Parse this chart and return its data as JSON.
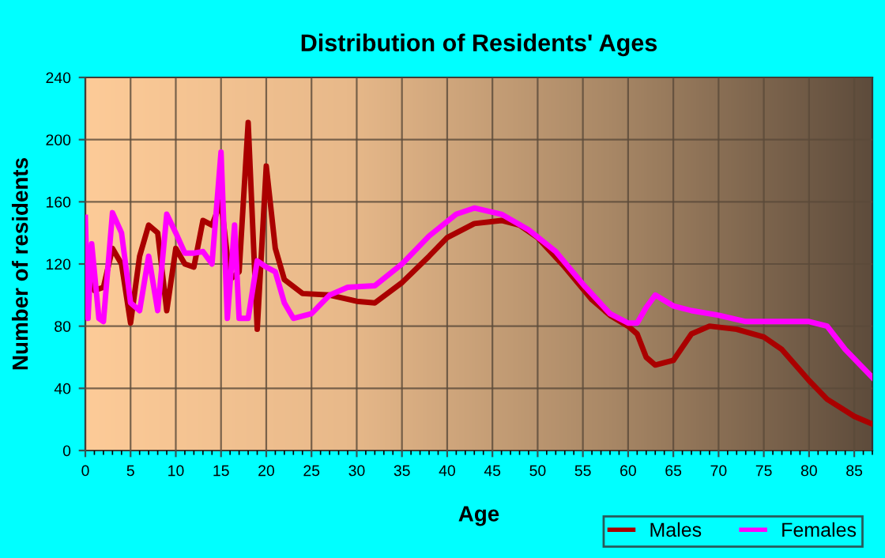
{
  "chart_data": {
    "type": "line",
    "title": "Distribution of Residents' Ages",
    "xlabel": "Age",
    "ylabel": "Number of residents",
    "xlim": [
      0,
      87
    ],
    "xticks": [
      0,
      5,
      10,
      15,
      20,
      25,
      30,
      35,
      40,
      45,
      50,
      55,
      60,
      65,
      70,
      75,
      80,
      85
    ],
    "ylim": [
      0,
      240
    ],
    "yticks": [
      0,
      40,
      80,
      120,
      160,
      200,
      240
    ],
    "grid": true,
    "legend": "bottom right",
    "series": [
      {
        "name": "Males",
        "color": "#aa0000",
        "x": [
          0,
          0.5,
          1,
          2,
          3,
          4,
          5,
          6,
          7,
          8,
          9,
          10,
          11,
          12,
          13,
          14,
          15,
          16,
          17,
          18,
          19,
          20,
          21,
          22,
          24,
          27,
          30,
          32,
          35,
          38,
          40,
          43,
          46,
          48,
          50,
          53,
          56,
          58,
          60,
          61,
          62,
          63,
          65,
          67,
          69,
          72,
          75,
          77,
          80,
          82,
          85,
          87
        ],
        "values": [
          100,
          128,
          103,
          105,
          130,
          120,
          82,
          125,
          145,
          140,
          90,
          130,
          120,
          118,
          148,
          145,
          160,
          110,
          115,
          211,
          78,
          183,
          130,
          110,
          101,
          100,
          96,
          95,
          108,
          125,
          137,
          146,
          148,
          145,
          137,
          118,
          97,
          87,
          80,
          75,
          60,
          55,
          58,
          75,
          80,
          78,
          73,
          65,
          45,
          33,
          22,
          17
        ]
      },
      {
        "name": "Females",
        "color": "#ff00ff",
        "x": [
          0,
          0.3,
          0.7,
          1.5,
          2,
          3,
          4,
          5,
          6,
          7,
          8,
          9,
          10,
          11,
          12,
          13,
          14,
          15,
          15.7,
          16.5,
          17,
          18,
          19,
          20,
          21,
          22,
          23,
          25,
          27,
          29,
          32,
          35,
          38,
          41,
          43,
          46,
          49,
          52,
          55,
          58,
          60,
          61,
          62,
          63,
          65,
          67,
          70,
          73,
          77,
          80,
          82,
          84,
          87
        ],
        "values": [
          150,
          85,
          133,
          85,
          83,
          153,
          140,
          95,
          90,
          125,
          90,
          152,
          140,
          127,
          127,
          128,
          120,
          192,
          85,
          145,
          85,
          85,
          122,
          118,
          115,
          95,
          85,
          88,
          100,
          105,
          106,
          120,
          138,
          152,
          156,
          152,
          142,
          128,
          107,
          88,
          82,
          82,
          92,
          100,
          93,
          90,
          87,
          83,
          83,
          83,
          80,
          65,
          47
        ]
      }
    ]
  }
}
